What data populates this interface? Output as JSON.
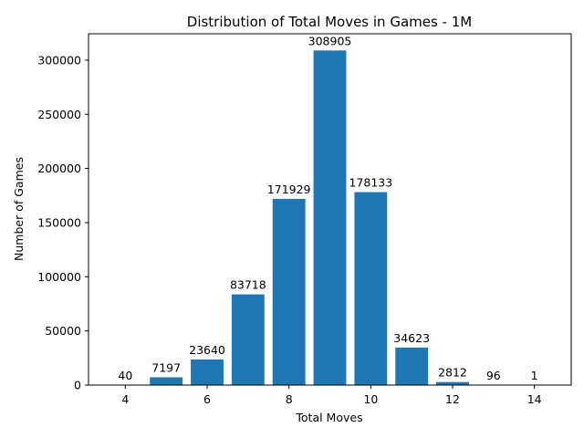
{
  "chart_data": {
    "type": "bar",
    "title": "Distribution of Total Moves in Games - 1M",
    "xlabel": "Total Moves",
    "ylabel": "Number of Games",
    "x": [
      4,
      5,
      6,
      7,
      8,
      9,
      10,
      11,
      12,
      13,
      14
    ],
    "values": [
      40,
      7197,
      23640,
      83718,
      171929,
      308905,
      178133,
      34623,
      2812,
      96,
      1
    ],
    "data_labels": [
      "40",
      "7197",
      "23640",
      "83718",
      "171929",
      "308905",
      "178133",
      "34623",
      "2812",
      "96",
      "1"
    ],
    "xlim": [
      3.1,
      14.9
    ],
    "ylim": [
      0,
      324350
    ],
    "xticks": [
      4,
      6,
      8,
      10,
      12,
      14
    ],
    "xtick_labels": [
      "4",
      "6",
      "8",
      "10",
      "12",
      "14"
    ],
    "yticks": [
      0,
      50000,
      100000,
      150000,
      200000,
      250000,
      300000
    ],
    "ytick_labels": [
      "0",
      "50000",
      "100000",
      "150000",
      "200000",
      "250000",
      "300000"
    ],
    "bar_color": "#1f77b4",
    "grid": false,
    "legend": "none"
  }
}
